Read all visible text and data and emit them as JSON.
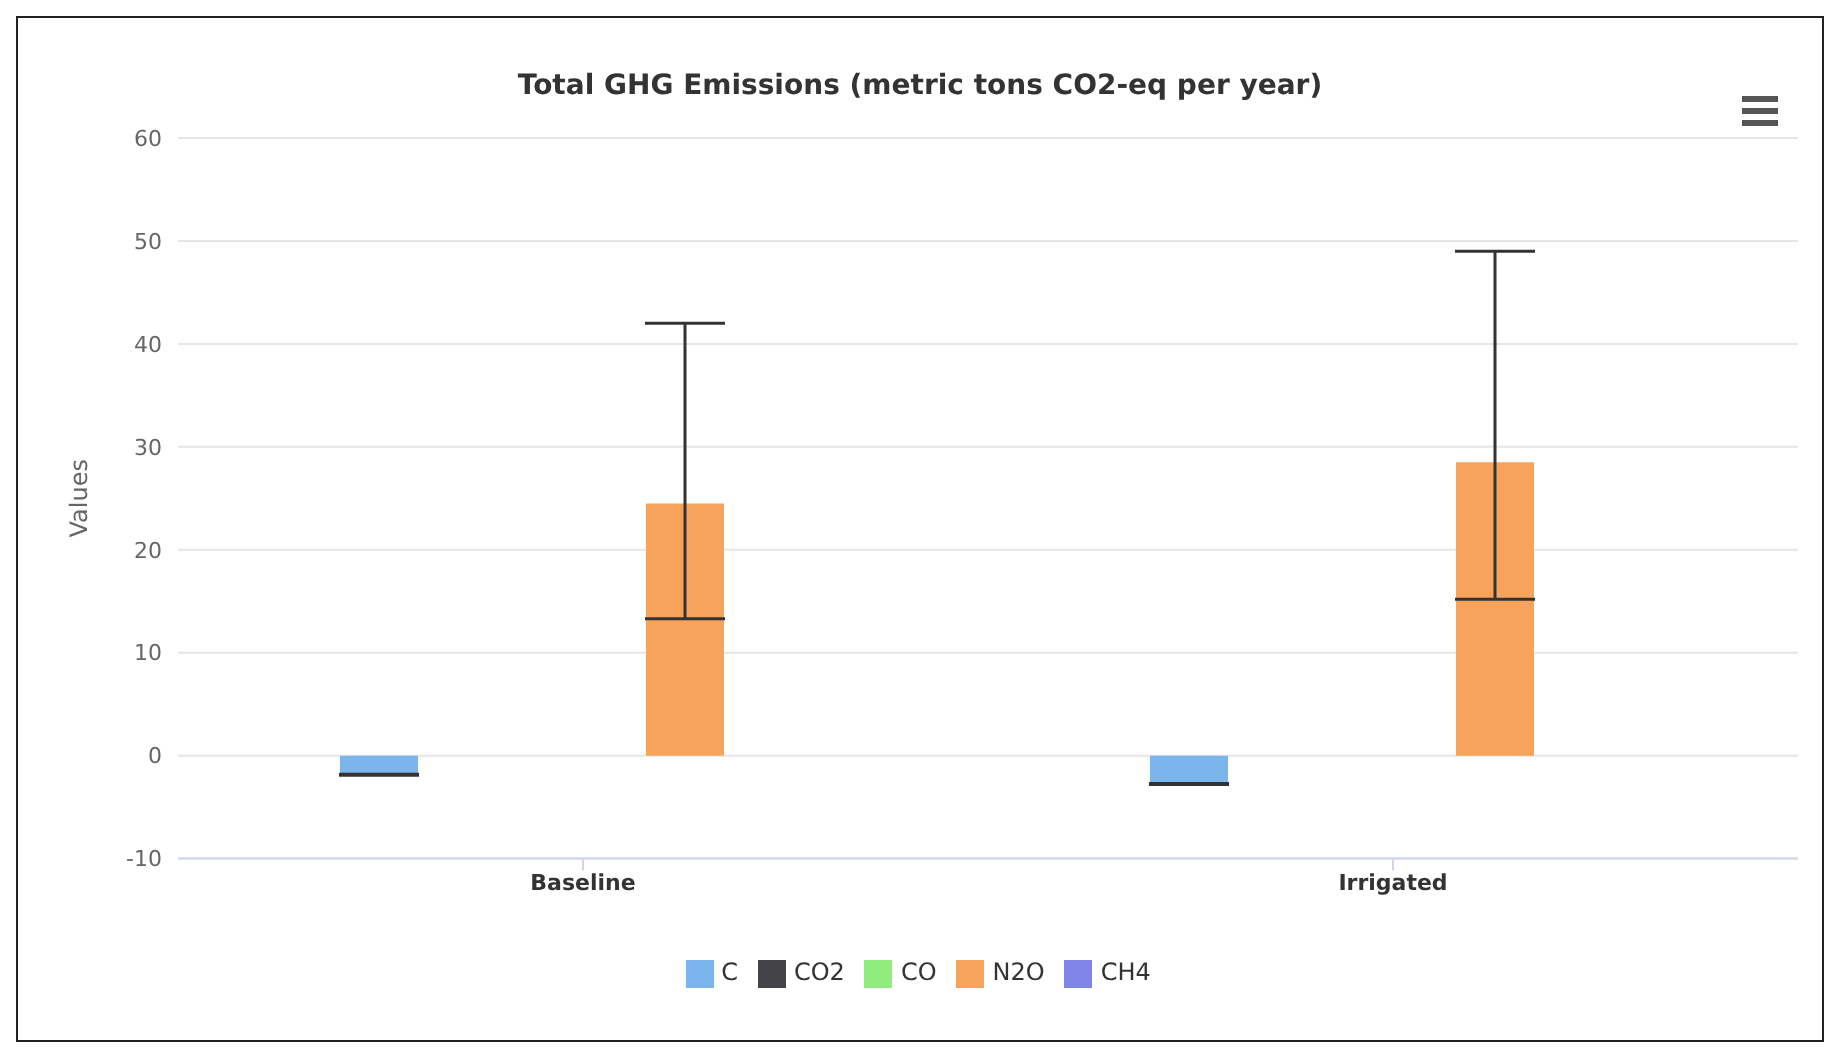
{
  "chart_data": {
    "type": "bar",
    "title": "Total GHG Emissions (metric tons CO2-eq per year)",
    "ylabel": "Values",
    "categories": [
      "Baseline",
      "Irrigated"
    ],
    "series": [
      {
        "name": "C",
        "color": "#7cb5ec",
        "values": [
          -1.8,
          -2.7
        ],
        "errors": [
          [
            -1.9,
            -1.8
          ],
          [
            -2.8,
            -2.7
          ]
        ]
      },
      {
        "name": "CO2",
        "color": "#434348",
        "values": [
          0,
          0
        ]
      },
      {
        "name": "CO",
        "color": "#90ed7d",
        "values": [
          0,
          0
        ]
      },
      {
        "name": "N2O",
        "color": "#f7a35c",
        "values": [
          24.5,
          28.5
        ],
        "errors": [
          [
            13.3,
            42
          ],
          [
            15.2,
            49
          ]
        ]
      },
      {
        "name": "CH4",
        "color": "#8085e9",
        "values": [
          0,
          0
        ]
      }
    ],
    "ylim": [
      -10,
      60
    ],
    "yticks": [
      -10,
      0,
      10,
      20,
      30,
      40,
      50,
      60
    ],
    "grid": "y",
    "legend": "bottom"
  }
}
